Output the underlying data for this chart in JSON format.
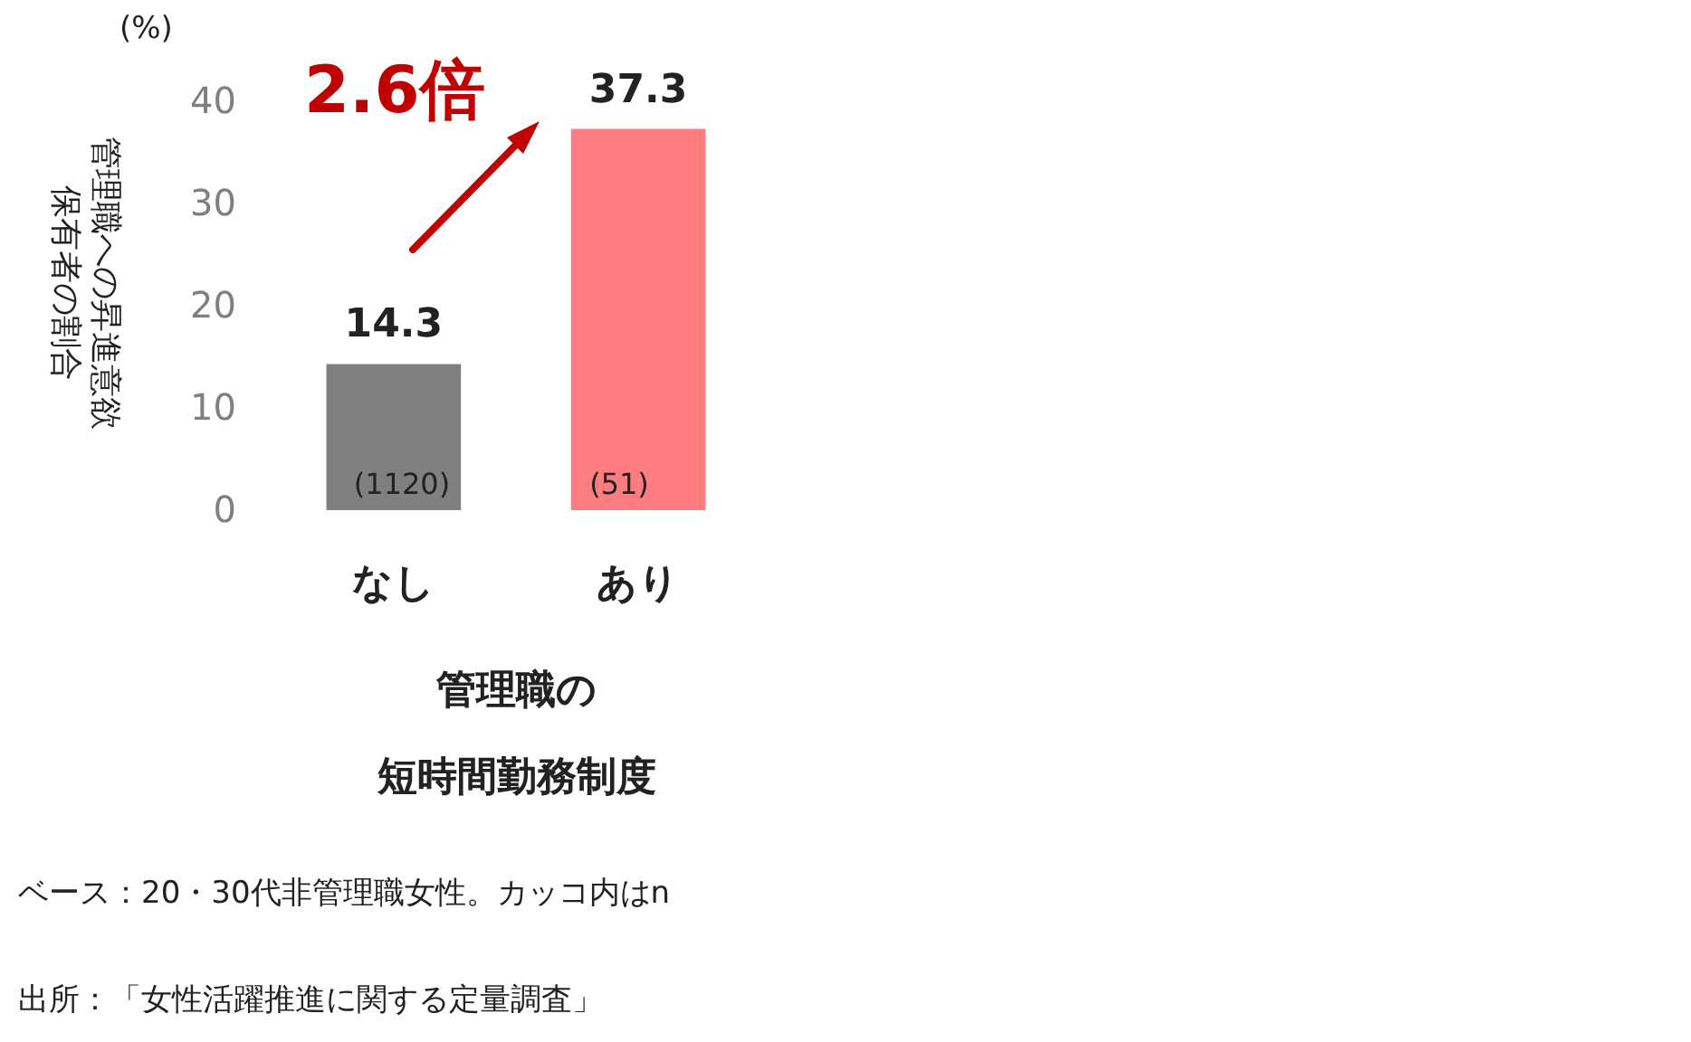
{
  "chart_data": {
    "type": "bar",
    "categories": [
      "なし",
      "あり"
    ],
    "values": [
      14.3,
      37.3
    ],
    "colors": [
      "#808080",
      "#ff7c80"
    ],
    "data_labels": true,
    "ylim": [
      0,
      40
    ],
    "yticks": [
      0,
      10,
      20,
      30,
      40
    ],
    "xlabel": "管理職の短時間勤務制度",
    "ylabel": "管理職への昇進意欲保有者の割合",
    "annotations": [
      "(%)",
      "2.6倍",
      "(1120)",
      "(51)",
      "ベース：20・30代非管理職女性。カッコ内はn",
      "出所：「女性活躍推進に関する定量調査」"
    ]
  }
}
